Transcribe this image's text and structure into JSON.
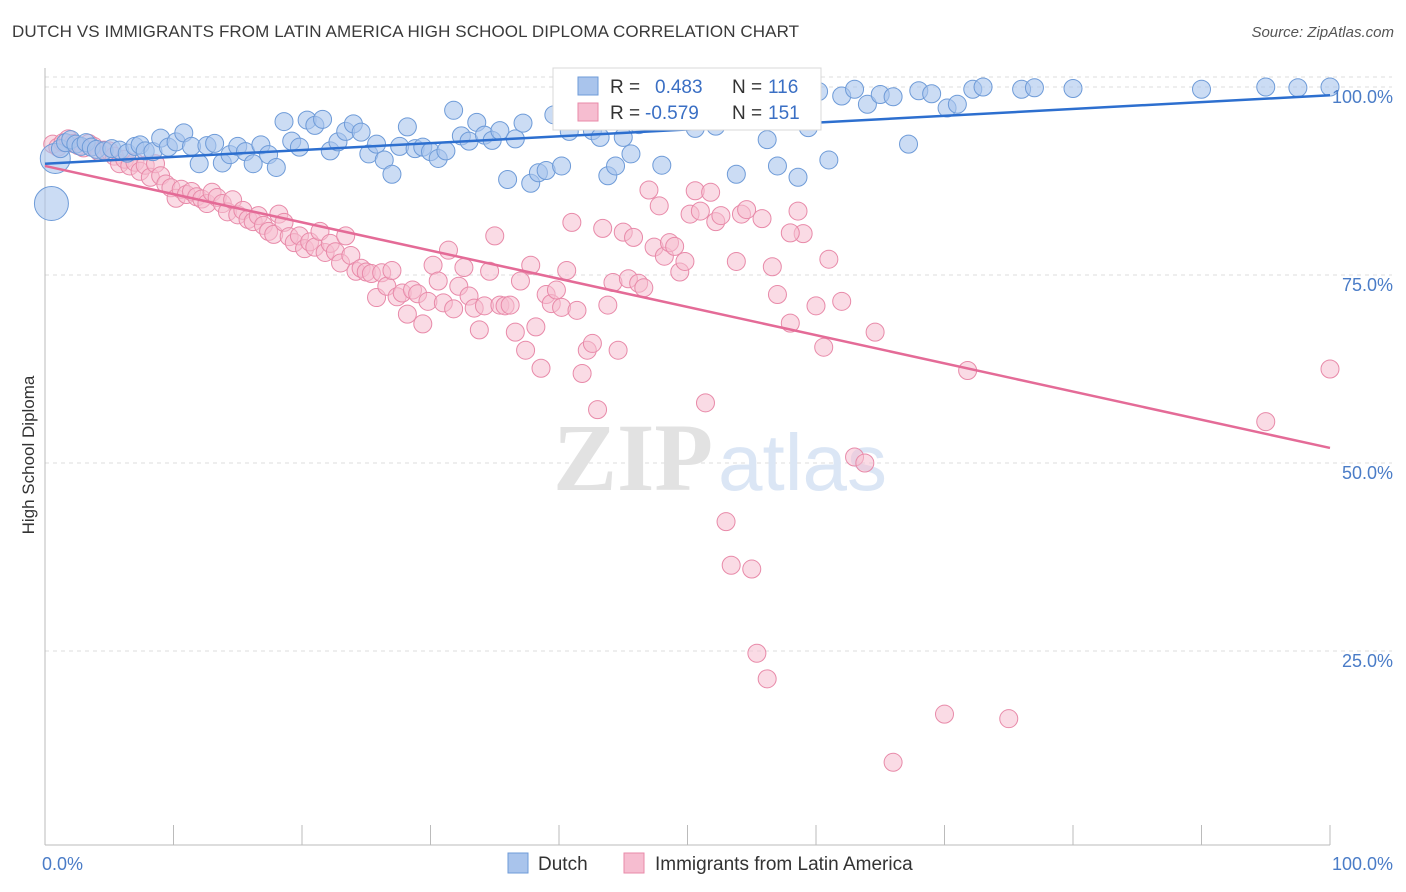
{
  "title": "DUTCH VS IMMIGRANTS FROM LATIN AMERICA HIGH SCHOOL DIPLOMA CORRELATION CHART",
  "source": "Source: ZipAtlas.com",
  "watermark": {
    "zip": "ZIP",
    "atlas": "atlas"
  },
  "colors": {
    "dutch_fill": "#a9c4ec",
    "dutch_stroke": "#6e9bd8",
    "dutch_line": "#2d6fcf",
    "latin_fill": "#f6bdd0",
    "latin_stroke": "#e88aa9",
    "latin_line": "#e46b97",
    "tick_text": "#4a7cc7",
    "grid": "#dddddd"
  },
  "legend": {
    "dutch": {
      "r_label": "R =",
      "r_value": "0.483",
      "n_label": "N =",
      "n_value": "116"
    },
    "latin": {
      "r_label": "R =",
      "r_value": "-0.579",
      "n_label": "N =",
      "n_value": "151"
    }
  },
  "bottom_legend": {
    "dutch": "Dutch",
    "latin": "Immigrants from Latin America"
  },
  "chart_data": {
    "type": "scatter",
    "title": "DUTCH VS IMMIGRANTS FROM LATIN AMERICA HIGH SCHOOL DIPLOMA CORRELATION CHART",
    "xlabel": "",
    "ylabel": "High School Diploma",
    "xlim": [
      0,
      100
    ],
    "ylim": [
      0,
      105
    ],
    "x_tick_labels": [
      "0.0%",
      "100.0%"
    ],
    "y_ticks": [
      25,
      50,
      75,
      100
    ],
    "y_tick_labels": [
      "25.0%",
      "50.0%",
      "75.0%",
      "100.0%"
    ],
    "grid": "horizontal dashed",
    "legend_placement": "top-center",
    "series": [
      {
        "name": "Dutch",
        "r": 0.483,
        "n": 116,
        "trend": {
          "x": [
            0,
            100
          ],
          "y": [
            89.8,
            98.9
          ]
        },
        "points": [
          [
            0.5,
            84.5
          ],
          [
            0.8,
            90.5
          ],
          [
            1.2,
            91.8
          ],
          [
            1.6,
            92.6
          ],
          [
            2.0,
            93.0
          ],
          [
            2.4,
            92.4
          ],
          [
            2.8,
            92.1
          ],
          [
            3.2,
            92.6
          ],
          [
            3.6,
            92.0
          ],
          [
            4.0,
            91.7
          ],
          [
            4.6,
            91.5
          ],
          [
            5.2,
            91.8
          ],
          [
            5.8,
            91.6
          ],
          [
            6.4,
            91.2
          ],
          [
            7.0,
            92.1
          ],
          [
            7.4,
            92.3
          ],
          [
            7.8,
            91.5
          ],
          [
            8.4,
            91.4
          ],
          [
            9.0,
            93.2
          ],
          [
            9.6,
            92.0
          ],
          [
            10.2,
            92.7
          ],
          [
            10.8,
            93.9
          ],
          [
            11.4,
            92.1
          ],
          [
            12.0,
            89.8
          ],
          [
            12.6,
            92.2
          ],
          [
            13.2,
            92.5
          ],
          [
            13.8,
            89.9
          ],
          [
            14.4,
            91.0
          ],
          [
            15.0,
            92.1
          ],
          [
            15.6,
            91.4
          ],
          [
            16.2,
            89.8
          ],
          [
            16.8,
            92.3
          ],
          [
            17.4,
            91.0
          ],
          [
            18.0,
            89.3
          ],
          [
            18.6,
            95.4
          ],
          [
            19.2,
            92.8
          ],
          [
            19.8,
            92.0
          ],
          [
            20.4,
            95.6
          ],
          [
            21.0,
            94.9
          ],
          [
            21.6,
            95.7
          ],
          [
            22.2,
            91.5
          ],
          [
            22.8,
            92.7
          ],
          [
            23.4,
            94.1
          ],
          [
            24.0,
            95.1
          ],
          [
            24.6,
            94.0
          ],
          [
            25.2,
            91.1
          ],
          [
            25.8,
            92.4
          ],
          [
            26.4,
            90.3
          ],
          [
            27.0,
            88.4
          ],
          [
            27.6,
            92.1
          ],
          [
            28.2,
            94.7
          ],
          [
            28.8,
            91.8
          ],
          [
            29.4,
            92.0
          ],
          [
            30.0,
            91.4
          ],
          [
            30.6,
            90.5
          ],
          [
            31.2,
            91.5
          ],
          [
            31.8,
            96.9
          ],
          [
            32.4,
            93.5
          ],
          [
            33.0,
            92.8
          ],
          [
            33.6,
            95.3
          ],
          [
            34.2,
            93.6
          ],
          [
            34.8,
            92.9
          ],
          [
            35.4,
            94.2
          ],
          [
            36.0,
            87.7
          ],
          [
            36.6,
            93.1
          ],
          [
            37.2,
            95.2
          ],
          [
            37.8,
            87.2
          ],
          [
            38.4,
            88.6
          ],
          [
            39.0,
            88.9
          ],
          [
            39.6,
            96.3
          ],
          [
            40.2,
            89.5
          ],
          [
            40.8,
            94.1
          ],
          [
            41.4,
            96.4
          ],
          [
            42.0,
            96.8
          ],
          [
            42.6,
            94.2
          ],
          [
            43.2,
            93.3
          ],
          [
            43.8,
            88.2
          ],
          [
            44.4,
            89.5
          ],
          [
            45.0,
            93.3
          ],
          [
            45.6,
            91.1
          ],
          [
            46.2,
            95.0
          ],
          [
            46.8,
            99.8
          ],
          [
            47.4,
            95.6
          ],
          [
            48.0,
            89.6
          ],
          [
            48.6,
            98.2
          ],
          [
            49.2,
            96.9
          ],
          [
            49.8,
            96.0
          ],
          [
            50.6,
            94.5
          ],
          [
            51.4,
            97.1
          ],
          [
            52.2,
            94.8
          ],
          [
            53.0,
            99.5
          ],
          [
            53.8,
            88.4
          ],
          [
            54.6,
            96.6
          ],
          [
            55.4,
            99.6
          ],
          [
            56.2,
            93.0
          ],
          [
            57.0,
            89.5
          ],
          [
            57.8,
            95.6
          ],
          [
            58.6,
            88.0
          ],
          [
            59.4,
            94.6
          ],
          [
            60.2,
            99.4
          ],
          [
            61.0,
            90.3
          ],
          [
            62.0,
            98.8
          ],
          [
            63.0,
            99.7
          ],
          [
            64.0,
            97.7
          ],
          [
            65.0,
            99.0
          ],
          [
            66.0,
            98.7
          ],
          [
            67.2,
            92.4
          ],
          [
            68.0,
            99.5
          ],
          [
            69.0,
            99.1
          ],
          [
            70.2,
            97.2
          ],
          [
            71.0,
            97.7
          ],
          [
            72.2,
            99.7
          ],
          [
            73.0,
            100.0
          ],
          [
            76.0,
            99.7
          ],
          [
            77.0,
            99.9
          ],
          [
            80.0,
            99.8
          ],
          [
            90.0,
            99.7
          ],
          [
            95.0,
            100.0
          ],
          [
            100.0,
            100.0
          ],
          [
            97.5,
            99.9
          ]
        ],
        "point_sizes_note": "two large points near x=0"
      },
      {
        "name": "Immigrants from Latin America",
        "r": -0.579,
        "n": 151,
        "trend": {
          "x": [
            0,
            100
          ],
          "y": [
            89.5,
            52.0
          ]
        },
        "points": [
          [
            0.6,
            92.4
          ],
          [
            1.0,
            92.0
          ],
          [
            1.4,
            92.6
          ],
          [
            1.8,
            93.1
          ],
          [
            2.2,
            92.5
          ],
          [
            2.6,
            92.2
          ],
          [
            3.0,
            91.9
          ],
          [
            3.4,
            92.5
          ],
          [
            3.8,
            92.1
          ],
          [
            4.2,
            91.4
          ],
          [
            4.6,
            91.6
          ],
          [
            5.0,
            91.5
          ],
          [
            5.4,
            90.8
          ],
          [
            5.8,
            89.8
          ],
          [
            6.2,
            90.4
          ],
          [
            6.6,
            89.5
          ],
          [
            7.0,
            90.0
          ],
          [
            7.4,
            88.8
          ],
          [
            7.8,
            89.6
          ],
          [
            8.2,
            88.0
          ],
          [
            8.6,
            89.8
          ],
          [
            9.0,
            88.2
          ],
          [
            9.4,
            87.1
          ],
          [
            9.8,
            86.6
          ],
          [
            10.2,
            85.2
          ],
          [
            10.6,
            86.4
          ],
          [
            11.0,
            85.7
          ],
          [
            11.4,
            86.1
          ],
          [
            11.8,
            85.4
          ],
          [
            12.2,
            85.1
          ],
          [
            12.6,
            84.5
          ],
          [
            13.0,
            86.0
          ],
          [
            13.4,
            85.3
          ],
          [
            13.8,
            84.5
          ],
          [
            14.2,
            83.4
          ],
          [
            14.6,
            85.0
          ],
          [
            15.0,
            83.0
          ],
          [
            15.4,
            83.6
          ],
          [
            15.8,
            82.4
          ],
          [
            16.2,
            82.1
          ],
          [
            16.6,
            82.9
          ],
          [
            17.0,
            81.6
          ],
          [
            17.4,
            80.8
          ],
          [
            17.8,
            80.4
          ],
          [
            18.2,
            83.1
          ],
          [
            18.6,
            82.0
          ],
          [
            19.0,
            80.1
          ],
          [
            19.4,
            79.3
          ],
          [
            19.8,
            80.2
          ],
          [
            20.2,
            78.5
          ],
          [
            20.6,
            79.4
          ],
          [
            21.0,
            78.7
          ],
          [
            21.4,
            80.8
          ],
          [
            21.8,
            78.0
          ],
          [
            22.2,
            79.2
          ],
          [
            22.6,
            78.1
          ],
          [
            23.0,
            76.6
          ],
          [
            23.4,
            80.2
          ],
          [
            23.8,
            77.6
          ],
          [
            24.2,
            75.5
          ],
          [
            24.6,
            75.9
          ],
          [
            25.0,
            75.4
          ],
          [
            25.4,
            75.2
          ],
          [
            25.8,
            72.0
          ],
          [
            26.2,
            75.3
          ],
          [
            26.6,
            73.5
          ],
          [
            27.0,
            75.6
          ],
          [
            27.4,
            72.1
          ],
          [
            27.8,
            72.6
          ],
          [
            28.2,
            69.8
          ],
          [
            28.6,
            73.0
          ],
          [
            29.0,
            72.5
          ],
          [
            29.4,
            68.5
          ],
          [
            29.8,
            71.5
          ],
          [
            30.2,
            76.3
          ],
          [
            30.6,
            74.2
          ],
          [
            31.0,
            71.3
          ],
          [
            31.4,
            78.3
          ],
          [
            31.8,
            70.5
          ],
          [
            32.2,
            73.5
          ],
          [
            32.6,
            76.0
          ],
          [
            33.0,
            72.2
          ],
          [
            33.4,
            70.6
          ],
          [
            33.8,
            67.7
          ],
          [
            34.2,
            70.9
          ],
          [
            34.6,
            75.5
          ],
          [
            35.0,
            80.2
          ],
          [
            35.4,
            71.0
          ],
          [
            35.8,
            70.9
          ],
          [
            36.2,
            71.0
          ],
          [
            36.6,
            67.4
          ],
          [
            37.0,
            74.2
          ],
          [
            37.4,
            65.0
          ],
          [
            37.8,
            76.3
          ],
          [
            38.2,
            68.1
          ],
          [
            38.6,
            62.6
          ],
          [
            39.0,
            72.4
          ],
          [
            39.4,
            71.2
          ],
          [
            39.8,
            73.0
          ],
          [
            40.2,
            70.7
          ],
          [
            40.6,
            75.6
          ],
          [
            41.0,
            82.0
          ],
          [
            41.4,
            70.3
          ],
          [
            41.8,
            61.9
          ],
          [
            42.2,
            65.0
          ],
          [
            42.6,
            65.9
          ],
          [
            43.0,
            57.1
          ],
          [
            43.4,
            81.2
          ],
          [
            43.8,
            71.0
          ],
          [
            44.2,
            74.0
          ],
          [
            44.6,
            65.0
          ],
          [
            45.0,
            80.7
          ],
          [
            45.4,
            74.5
          ],
          [
            45.8,
            80.0
          ],
          [
            46.2,
            73.9
          ],
          [
            46.6,
            73.3
          ],
          [
            47.0,
            86.3
          ],
          [
            47.4,
            78.7
          ],
          [
            47.8,
            84.2
          ],
          [
            48.2,
            77.5
          ],
          [
            48.6,
            79.3
          ],
          [
            49.0,
            78.8
          ],
          [
            49.4,
            75.4
          ],
          [
            49.8,
            76.8
          ],
          [
            50.2,
            83.1
          ],
          [
            50.6,
            86.2
          ],
          [
            51.0,
            83.5
          ],
          [
            51.4,
            58.0
          ],
          [
            51.8,
            86.0
          ],
          [
            52.2,
            82.1
          ],
          [
            52.6,
            82.9
          ],
          [
            53.0,
            42.2
          ],
          [
            53.4,
            36.4
          ],
          [
            53.8,
            76.8
          ],
          [
            54.2,
            83.1
          ],
          [
            54.6,
            83.7
          ],
          [
            55.0,
            35.9
          ],
          [
            55.4,
            24.7
          ],
          [
            55.8,
            82.5
          ],
          [
            56.2,
            21.3
          ],
          [
            56.6,
            76.1
          ],
          [
            57.0,
            72.4
          ],
          [
            58.0,
            68.6
          ],
          [
            58.6,
            83.5
          ],
          [
            59.0,
            80.5
          ],
          [
            60.0,
            70.9
          ],
          [
            60.6,
            65.4
          ],
          [
            61.0,
            77.1
          ],
          [
            62.0,
            71.5
          ],
          [
            63.0,
            50.8
          ],
          [
            63.8,
            50.0
          ],
          [
            64.6,
            67.4
          ],
          [
            66.0,
            10.2
          ],
          [
            70.0,
            16.6
          ],
          [
            75.0,
            16.0
          ],
          [
            95.0,
            55.5
          ],
          [
            100.0,
            62.5
          ],
          [
            71.8,
            62.3
          ],
          [
            58.0,
            80.6
          ]
        ]
      }
    ]
  }
}
